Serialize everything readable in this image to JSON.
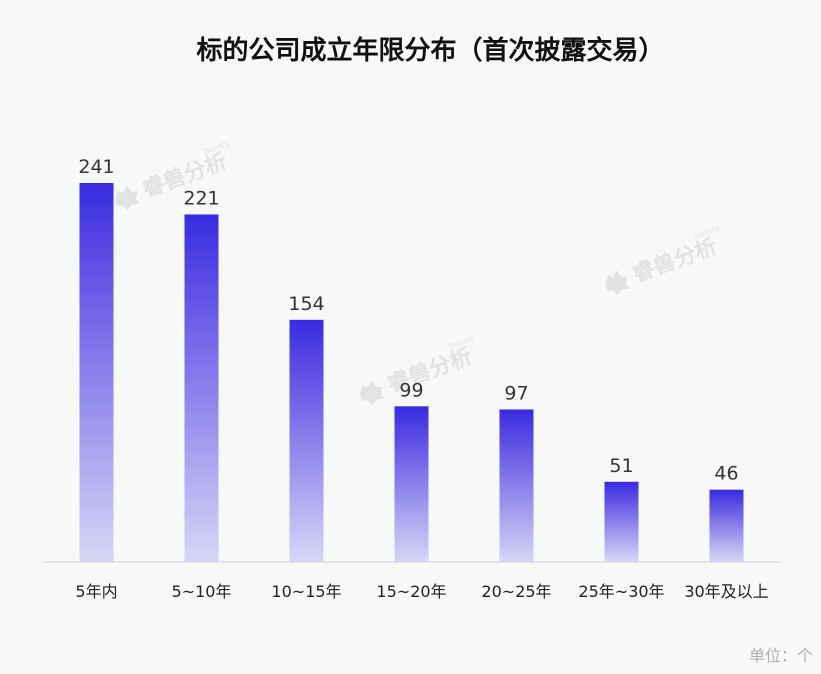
{
  "chart_data": {
    "type": "bar",
    "title": "标的公司成立年限分布（首次披露交易）",
    "categories": [
      "5年内",
      "5~10年",
      "10~15年",
      "15~20年",
      "20~25年",
      "25年~30年",
      "30年及以上"
    ],
    "values": [
      241,
      221,
      154,
      99,
      97,
      51,
      46
    ],
    "ylim": [
      0,
      241
    ],
    "grid": false,
    "bar_color_top": "#3a2be0",
    "bar_color_bottom": "#d8d6f6"
  },
  "unit_label": "单位：个",
  "watermark": {
    "text": "睿兽分析",
    "subtext": "Beasts"
  }
}
